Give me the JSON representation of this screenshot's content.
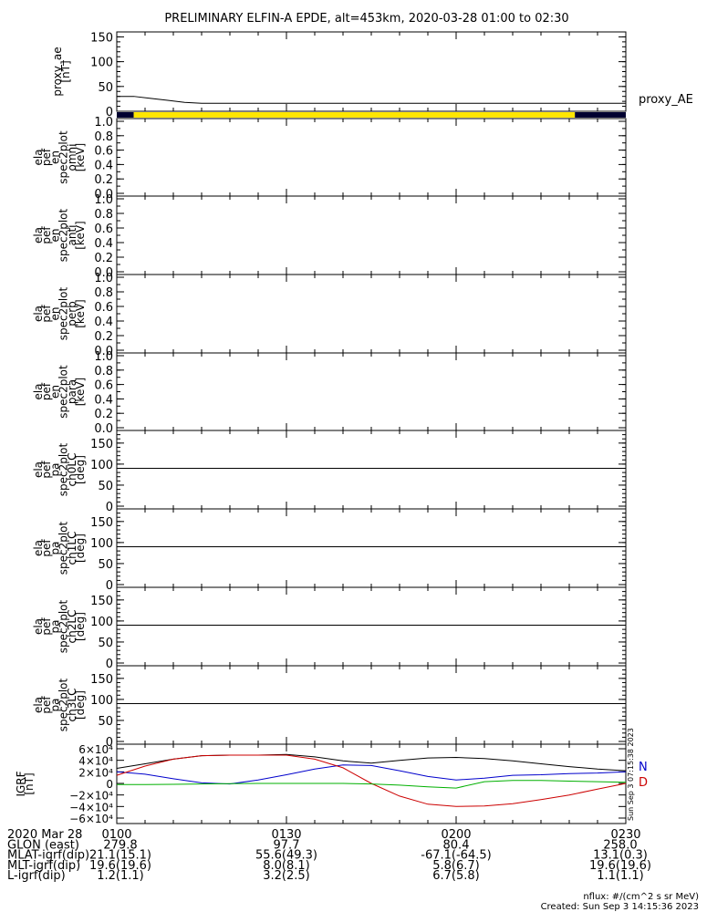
{
  "title": "PRELIMINARY ELFIN-A EPDE, alt=453km, 2020-03-28 01:00 to 02:30",
  "colors": {
    "axis": "#000000",
    "state_bar_active": "#ffe600",
    "state_bar_off": "#000030",
    "grf_n": "#0000cc",
    "grf_d": "#cc0000",
    "grf_total": "#000000",
    "grf_z": "#00b000"
  },
  "chart_data": [
    {
      "type": "line",
      "panel": "proxy_ae",
      "ylabel": [
        "proxy_ae",
        "[nT]"
      ],
      "ylim": [
        0,
        160
      ],
      "yticks": [
        "150",
        "100",
        "50",
        "0"
      ],
      "legend": "proxy_AE",
      "series": [
        {
          "name": "proxy_AE",
          "x_minutes": [
            0,
            3,
            6,
            9,
            12,
            15,
            90
          ],
          "values": [
            30,
            30,
            26,
            22,
            18,
            16,
            16
          ]
        }
      ]
    },
    {
      "type": "bar",
      "panel": "science-zone-bar",
      "segments": [
        {
          "from": 0,
          "to": 3,
          "state": "off"
        },
        {
          "from": 3,
          "to": 81,
          "state": "active"
        },
        {
          "from": 81,
          "to": 90,
          "state": "off"
        }
      ]
    },
    {
      "type": "heatmap",
      "panel": "spec-omni",
      "ylabel": [
        "ela",
        "pef",
        "en",
        "spec2plot",
        "omni",
        "[keV]"
      ],
      "yticks": [
        "1.0",
        "0.8",
        "0.6",
        "0.4",
        "0.2",
        "0.0"
      ]
    },
    {
      "type": "heatmap",
      "panel": "spec-anti",
      "ylabel": [
        "ela",
        "pef",
        "en",
        "spec2plot",
        "anti",
        "[keV]"
      ],
      "yticks": [
        "1.0",
        "0.8",
        "0.6",
        "0.4",
        "0.2",
        "0.0"
      ]
    },
    {
      "type": "heatmap",
      "panel": "spec-perp",
      "ylabel": [
        "ela",
        "pef",
        "en",
        "spec2plot",
        "perp",
        "[keV]"
      ],
      "yticks": [
        "1.0",
        "0.8",
        "0.6",
        "0.4",
        "0.2",
        "0.0"
      ]
    },
    {
      "type": "heatmap",
      "panel": "spec-para",
      "ylabel": [
        "ela",
        "pef",
        "en",
        "spec2plot",
        "para",
        "[keV]"
      ],
      "yticks": [
        "1.0",
        "0.8",
        "0.6",
        "0.4",
        "0.2",
        "0.0"
      ]
    },
    {
      "type": "heatmap",
      "panel": "pa-ch0lc",
      "ylabel": [
        "ela",
        "pef",
        "pa",
        "spec2plot",
        "ch0LC",
        "[deg]"
      ],
      "yticks": [
        "150",
        "100",
        "50",
        "0"
      ],
      "ylim": [
        0,
        180
      ],
      "ref_line": 90
    },
    {
      "type": "heatmap",
      "panel": "pa-ch1lc",
      "ylabel": [
        "ela",
        "pef",
        "pa",
        "spec2plot",
        "ch1LC",
        "[deg]"
      ],
      "yticks": [
        "150",
        "100",
        "50",
        "0"
      ],
      "ylim": [
        0,
        180
      ],
      "ref_line": 90
    },
    {
      "type": "heatmap",
      "panel": "pa-ch2lc",
      "ylabel": [
        "ela",
        "pef",
        "pa",
        "spec2plot",
        "ch2LC",
        "[deg]"
      ],
      "yticks": [
        "150",
        "100",
        "50",
        "0"
      ],
      "ylim": [
        0,
        180
      ],
      "ref_line": 90
    },
    {
      "type": "heatmap",
      "panel": "pa-ch3lc",
      "ylabel": [
        "ela",
        "pef",
        "pa",
        "spec2plot",
        "ch3LC",
        "[deg]"
      ],
      "yticks": [
        "150",
        "100",
        "50",
        "0"
      ],
      "ylim": [
        0,
        180
      ],
      "ref_line": 90
    },
    {
      "type": "line",
      "panel": "igrf",
      "ylabel": [
        "IGRF",
        "[nT]"
      ],
      "ylim": [
        -60000,
        60000
      ],
      "ytick_values": [
        60000,
        40000,
        20000,
        0,
        -20000,
        -40000,
        -60000
      ],
      "yticks": [
        "6×10⁴",
        "4×10⁴",
        "2×10⁴",
        "0",
        "−2×10⁴",
        "−4×10⁴",
        "−6×10⁴"
      ],
      "legend": [
        "N",
        "D"
      ],
      "side_text": "Sun Sep  3 07:15:38 2023",
      "series": [
        {
          "name": "total",
          "x_minutes": [
            0,
            5,
            10,
            15,
            20,
            25,
            30,
            35,
            40,
            45,
            50,
            55,
            60,
            65,
            70,
            75,
            80,
            85,
            90
          ],
          "values": [
            26000,
            34000,
            42000,
            48000,
            49000,
            49000,
            50000,
            46000,
            39000,
            35000,
            40000,
            44000,
            45000,
            43000,
            39000,
            34000,
            29000,
            25000,
            22000
          ]
        },
        {
          "name": "N",
          "x_minutes": [
            0,
            5,
            10,
            15,
            20,
            25,
            30,
            35,
            40,
            45,
            50,
            55,
            60,
            65,
            70,
            75,
            80,
            85,
            90
          ],
          "values": [
            20000,
            16000,
            8000,
            1000,
            -1000,
            6000,
            15000,
            25000,
            32000,
            31000,
            22000,
            12000,
            6000,
            9000,
            14000,
            15000,
            17000,
            18000,
            20000
          ]
        },
        {
          "name": "D",
          "x_minutes": [
            0,
            5,
            10,
            15,
            20,
            25,
            30,
            35,
            40,
            45,
            50,
            55,
            60,
            65,
            70,
            75,
            80,
            85,
            90
          ],
          "values": [
            14000,
            30000,
            42000,
            48000,
            49000,
            49000,
            49000,
            42000,
            27000,
            0,
            -22000,
            -36000,
            -40000,
            -39000,
            -35000,
            -28000,
            -20000,
            -10000,
            0
          ]
        },
        {
          "name": "Z",
          "x_minutes": [
            0,
            5,
            10,
            15,
            20,
            25,
            30,
            35,
            40,
            45,
            50,
            55,
            60,
            65,
            70,
            75,
            80,
            85,
            90
          ],
          "values": [
            -2000,
            -2000,
            -1500,
            -1000,
            -500,
            0,
            0,
            0,
            0,
            -1000,
            -3000,
            -6000,
            -8000,
            3000,
            5000,
            5000,
            4000,
            3000,
            2000
          ]
        }
      ]
    }
  ],
  "time_axis": {
    "date": "2020 Mar 28",
    "tick_minutes": [
      0,
      30,
      60,
      90
    ],
    "tick_labels": [
      "0100",
      "0130",
      "0200",
      "0230"
    ],
    "rows": [
      {
        "label": "GLON (east)",
        "values": [
          "279.8",
          "97.7",
          "80.4",
          "258.0"
        ]
      },
      {
        "label": "MLAT-igrf(dip)",
        "values": [
          "21.1(15.1)",
          "55.6(49.3)",
          "-67.1(-64.5)",
          "13.1(0.3)"
        ]
      },
      {
        "label": "MLT-igrf(dip)",
        "values": [
          "19.6(19.6)",
          "8.0(8.1)",
          "5.8(6.7)",
          "19.6(19.6)"
        ]
      },
      {
        "label": "L-igrf(dip)",
        "values": [
          "1.2(1.1)",
          "3.2(2.5)",
          "6.7(5.8)",
          "1.1(1.1)"
        ]
      }
    ]
  },
  "footer": {
    "units": "nflux: #/(cm^2 s sr MeV)",
    "created": "Created: Sun Sep  3 14:15:36 2023"
  }
}
